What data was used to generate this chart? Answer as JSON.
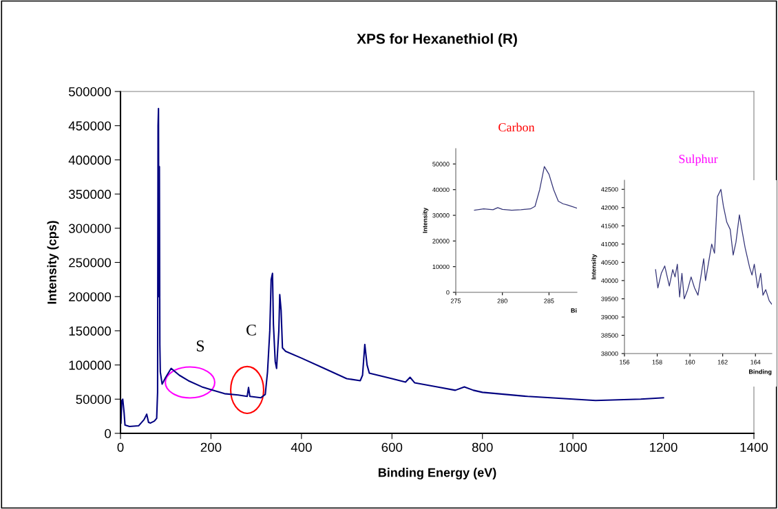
{
  "chart_data": [
    {
      "type": "line",
      "title": "XPS for Hexanethiol (R)",
      "xlabel": "Binding Energy (eV)",
      "ylabel": "Intensity (cps)",
      "xlim": [
        0,
        1400
      ],
      "xticks": [
        0,
        200,
        400,
        600,
        800,
        1000,
        1200,
        1400
      ],
      "ylim": [
        0,
        500000
      ],
      "yticks": [
        0,
        50000,
        100000,
        150000,
        200000,
        250000,
        300000,
        350000,
        400000,
        450000,
        500000
      ],
      "grid": false,
      "legend": false,
      "marker": "none",
      "line_style": "solid",
      "annotations": [
        "S",
        "C"
      ],
      "series": [
        {
          "color": "#000080",
          "x": [
            1,
            3,
            5,
            8,
            10,
            20,
            40,
            52,
            58,
            62,
            66,
            75,
            80,
            82,
            83,
            84,
            85,
            86,
            87,
            88,
            92,
            100,
            112,
            130,
            150,
            180,
            200,
            230,
            260,
            280,
            283,
            286,
            310,
            320,
            325,
            330,
            333,
            336,
            338,
            342,
            345,
            350,
            352,
            355,
            358,
            365,
            400,
            450,
            500,
            530,
            535,
            540,
            545,
            550,
            600,
            630,
            640,
            650,
            700,
            740,
            760,
            780,
            800,
            900,
            1000,
            1050,
            1100,
            1150,
            1200
          ],
          "values": [
            15000,
            48000,
            50000,
            30000,
            12000,
            10000,
            11000,
            20000,
            28000,
            16000,
            15000,
            18000,
            22000,
            60000,
            450000,
            475000,
            200000,
            390000,
            130000,
            90000,
            72000,
            82000,
            95000,
            85000,
            77000,
            68000,
            64000,
            58000,
            56000,
            54000,
            67000,
            54000,
            52000,
            57000,
            90000,
            150000,
            225000,
            234000,
            160000,
            105000,
            95000,
            150000,
            203000,
            180000,
            125000,
            120000,
            110000,
            95000,
            80000,
            77000,
            85000,
            130000,
            100000,
            88000,
            80000,
            75000,
            82000,
            74000,
            68000,
            63000,
            68000,
            63000,
            60000,
            54000,
            50000,
            48000,
            49000,
            50000,
            52000
          ]
        }
      ]
    },
    {
      "type": "line",
      "title": "Carbon",
      "xlabel": "Bi",
      "ylabel": "Intensity",
      "xlim": [
        275,
        288
      ],
      "xticks": [
        275,
        280,
        285
      ],
      "ylim": [
        0,
        56000
      ],
      "yticks": [
        0,
        10000,
        20000,
        30000,
        40000,
        50000
      ],
      "grid": false,
      "legend": false,
      "marker": "none",
      "line_style": "solid",
      "series": [
        {
          "color": "#333377",
          "x": [
            277,
            278,
            279,
            279.5,
            280,
            281,
            282,
            283,
            283.5,
            284,
            284.5,
            285,
            285.5,
            286,
            286.5,
            287,
            288
          ],
          "values": [
            32000,
            32500,
            32200,
            33000,
            32300,
            32000,
            32200,
            32500,
            33500,
            40000,
            49000,
            46000,
            40000,
            35500,
            34500,
            34000,
            32800
          ]
        }
      ]
    },
    {
      "type": "line",
      "title": "Sulphur",
      "xlabel": "Binding",
      "ylabel": "Intensity",
      "xlim": [
        156,
        165
      ],
      "xticks": [
        156,
        158,
        160,
        162,
        164
      ],
      "ylim": [
        38000,
        42750
      ],
      "yticks": [
        38000,
        38500,
        39000,
        39500,
        40000,
        40500,
        41000,
        41500,
        42000,
        42500
      ],
      "grid": false,
      "legend": false,
      "marker": "none",
      "line_style": "solid",
      "series": [
        {
          "color": "#333377",
          "x": [
            157.9,
            158.04,
            158.25,
            158.46,
            158.74,
            158.95,
            159.09,
            159.23,
            159.37,
            159.51,
            159.65,
            159.86,
            160.07,
            160.28,
            160.49,
            160.7,
            160.84,
            160.95,
            161.12,
            161.33,
            161.5,
            161.68,
            161.89,
            162.04,
            162.25,
            162.46,
            162.64,
            162.81,
            163.02,
            163.19,
            163.37,
            163.65,
            163.79,
            163.93,
            164.14,
            164.32,
            164.46,
            164.63,
            164.84,
            165.0
          ],
          "values": [
            40300,
            39800,
            40200,
            40400,
            39850,
            40300,
            40100,
            40450,
            39550,
            40200,
            39500,
            39750,
            40100,
            39800,
            39600,
            40200,
            40600,
            40000,
            40450,
            41000,
            40750,
            42300,
            42500,
            42050,
            41600,
            41400,
            40700,
            41050,
            41800,
            41350,
            40900,
            40350,
            40150,
            40450,
            39800,
            40200,
            39600,
            39750,
            39450,
            39350
          ]
        }
      ]
    }
  ]
}
